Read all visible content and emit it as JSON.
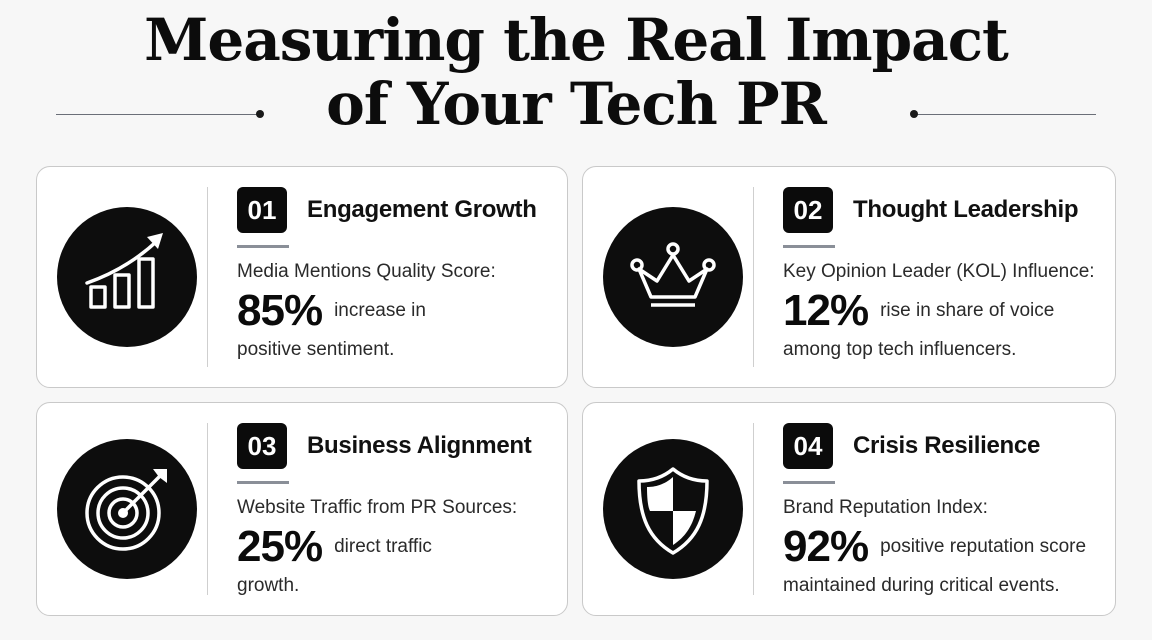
{
  "title": {
    "line1": "Measuring the Real Impact",
    "line2": "of Your Tech PR"
  },
  "cards": [
    {
      "number": "01",
      "heading": "Engagement Growth",
      "label": "Media Mentions Quality Score:",
      "stat": "85%",
      "desc_line1": "increase in",
      "desc_line2": "positive sentiment.",
      "icon": "growth-chart-icon"
    },
    {
      "number": "02",
      "heading": "Thought Leadership",
      "label": "Key Opinion Leader (KOL) Influence:",
      "stat": "12%",
      "desc_line1": "rise in share of voice",
      "desc_line2": "among top tech influencers.",
      "icon": "crown-icon"
    },
    {
      "number": "03",
      "heading": "Business Alignment",
      "label": "Website Traffic from PR Sources:",
      "stat": "25%",
      "desc_line1": "direct traffic",
      "desc_line2": "growth.",
      "icon": "target-icon"
    },
    {
      "number": "04",
      "heading": "Crisis Resilience",
      "label": "Brand Reputation Index:",
      "stat": "92%",
      "desc_line1": "positive reputation score",
      "desc_line2": "maintained during critical events.",
      "icon": "shield-icon"
    }
  ]
}
